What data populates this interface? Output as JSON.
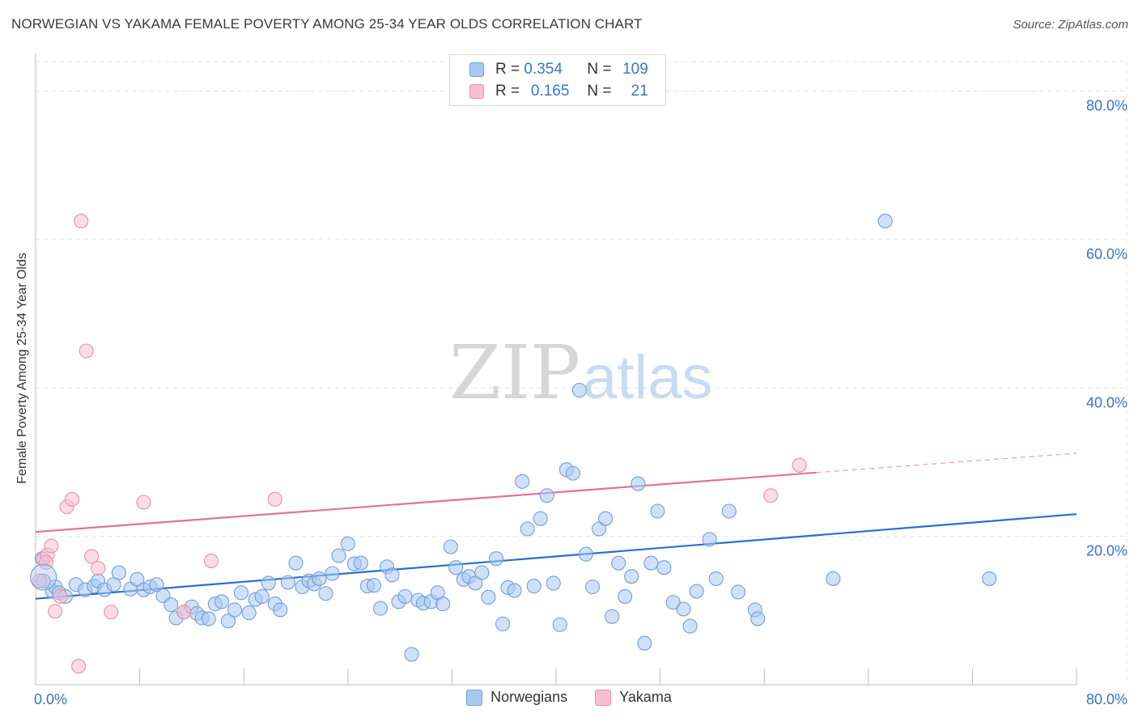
{
  "title": "NORWEGIAN VS YAKAMA FEMALE POVERTY AMONG 25-34 YEAR OLDS CORRELATION CHART",
  "source": "Source: ZipAtlas.com",
  "watermark": {
    "zip": "ZIP",
    "atlas": "atlas"
  },
  "colors": {
    "norwegians_fill": "#a9c8f0",
    "norwegians_stroke": "#6f9fdc",
    "norwegians_line": "#2a6fcc",
    "yakama_fill": "#f6bfd0",
    "yakama_stroke": "#ea8fab",
    "yakama_line": "#e2719a",
    "tick_label": "#3a74c9",
    "grid": "#e3e3e3"
  },
  "legend": {
    "rows": [
      {
        "r_label": "R =",
        "r_value": "0.354",
        "n_label": "N =",
        "n_value": "109"
      },
      {
        "r_label": "R =",
        "r_value": "0.165",
        "n_label": "N =",
        "n_value": "21"
      }
    ]
  },
  "bottom_legend": [
    "Norwegians",
    "Yakama"
  ],
  "chart_data": {
    "type": "scatter",
    "title": "NORWEGIAN VS YAKAMA FEMALE POVERTY AMONG 25-34 YEAR OLDS CORRELATION CHART",
    "xlabel": "",
    "ylabel": "Female Poverty Among 25-34 Year Olds",
    "xlim": [
      0,
      80
    ],
    "ylim": [
      0,
      84
    ],
    "x_tick_labels": [
      "0.0%",
      "80.0%"
    ],
    "y_ticks": [
      20,
      40,
      60,
      80
    ],
    "y_tick_labels": [
      "20.0%",
      "40.0%",
      "60.0%",
      "80.0%"
    ],
    "grid": true,
    "legend_position": "top-center",
    "series": [
      {
        "name": "Norwegians",
        "r": 0.354,
        "n": 109,
        "trend": {
          "x": [
            0,
            80
          ],
          "y": [
            11.6,
            23.0
          ]
        },
        "points": [
          [
            0.5,
            17.0
          ],
          [
            0.6,
            14.0
          ],
          [
            1.3,
            12.6
          ],
          [
            1.5,
            13.2
          ],
          [
            1.8,
            12.4
          ],
          [
            2.3,
            11.9
          ],
          [
            3.1,
            13.5
          ],
          [
            3.8,
            12.8
          ],
          [
            4.5,
            13.3
          ],
          [
            4.8,
            14.0
          ],
          [
            5.3,
            12.8
          ],
          [
            6.0,
            13.5
          ],
          [
            6.4,
            15.1
          ],
          [
            7.3,
            12.9
          ],
          [
            7.8,
            14.2
          ],
          [
            8.3,
            12.8
          ],
          [
            8.8,
            13.2
          ],
          [
            9.3,
            13.5
          ],
          [
            9.8,
            12.0
          ],
          [
            10.4,
            10.8
          ],
          [
            10.8,
            9.0
          ],
          [
            11.4,
            9.8
          ],
          [
            12.0,
            10.5
          ],
          [
            12.4,
            9.6
          ],
          [
            12.8,
            9.0
          ],
          [
            13.3,
            8.9
          ],
          [
            13.8,
            10.9
          ],
          [
            14.3,
            11.2
          ],
          [
            14.8,
            8.6
          ],
          [
            15.3,
            10.1
          ],
          [
            15.8,
            12.4
          ],
          [
            16.4,
            9.7
          ],
          [
            16.9,
            11.5
          ],
          [
            17.4,
            11.9
          ],
          [
            17.9,
            13.7
          ],
          [
            18.4,
            10.9
          ],
          [
            18.8,
            10.1
          ],
          [
            19.4,
            13.8
          ],
          [
            20.0,
            16.4
          ],
          [
            20.5,
            13.2
          ],
          [
            21.0,
            14.0
          ],
          [
            21.4,
            13.6
          ],
          [
            21.8,
            14.3
          ],
          [
            22.3,
            12.3
          ],
          [
            22.8,
            15.0
          ],
          [
            23.3,
            17.4
          ],
          [
            24.0,
            19.0
          ],
          [
            24.5,
            16.3
          ],
          [
            25.0,
            16.4
          ],
          [
            25.5,
            13.3
          ],
          [
            26.0,
            13.4
          ],
          [
            26.5,
            10.3
          ],
          [
            27.0,
            15.9
          ],
          [
            27.4,
            14.8
          ],
          [
            27.9,
            11.2
          ],
          [
            28.4,
            11.9
          ],
          [
            28.9,
            4.1
          ],
          [
            29.4,
            11.4
          ],
          [
            29.8,
            11.0
          ],
          [
            30.4,
            11.2
          ],
          [
            30.9,
            12.4
          ],
          [
            31.3,
            10.9
          ],
          [
            31.9,
            18.6
          ],
          [
            32.3,
            15.8
          ],
          [
            32.9,
            14.2
          ],
          [
            33.3,
            14.6
          ],
          [
            33.8,
            13.7
          ],
          [
            34.3,
            15.1
          ],
          [
            34.8,
            11.8
          ],
          [
            35.4,
            17.0
          ],
          [
            35.9,
            8.2
          ],
          [
            36.3,
            13.1
          ],
          [
            36.8,
            12.7
          ],
          [
            37.4,
            27.4
          ],
          [
            37.8,
            21.0
          ],
          [
            38.3,
            13.3
          ],
          [
            38.8,
            22.4
          ],
          [
            39.3,
            25.5
          ],
          [
            39.8,
            13.7
          ],
          [
            40.3,
            8.1
          ],
          [
            40.8,
            29.0
          ],
          [
            41.3,
            28.5
          ],
          [
            41.8,
            39.7
          ],
          [
            42.3,
            17.6
          ],
          [
            42.8,
            13.2
          ],
          [
            43.3,
            21.0
          ],
          [
            43.8,
            22.4
          ],
          [
            44.3,
            9.2
          ],
          [
            44.8,
            16.4
          ],
          [
            45.3,
            11.9
          ],
          [
            45.8,
            14.6
          ],
          [
            46.3,
            27.1
          ],
          [
            46.8,
            5.6
          ],
          [
            47.3,
            16.4
          ],
          [
            47.8,
            23.4
          ],
          [
            48.3,
            15.8
          ],
          [
            49.0,
            11.1
          ],
          [
            49.8,
            10.2
          ],
          [
            50.3,
            7.9
          ],
          [
            50.8,
            12.6
          ],
          [
            51.8,
            19.6
          ],
          [
            52.3,
            14.3
          ],
          [
            53.3,
            23.4
          ],
          [
            54.0,
            12.5
          ],
          [
            55.3,
            10.1
          ],
          [
            55.5,
            8.9
          ],
          [
            61.3,
            14.3
          ],
          [
            65.3,
            62.5
          ],
          [
            73.3,
            14.3
          ]
        ]
      },
      {
        "name": "Yakama",
        "r": 0.165,
        "n": 21,
        "trend": {
          "x": [
            0,
            60
          ],
          "y": [
            20.6,
            28.6
          ],
          "extended": {
            "x": [
              60,
              80
            ],
            "y": [
              28.6,
              31.2
            ]
          }
        },
        "points": [
          [
            0.3,
            14.0
          ],
          [
            0.6,
            16.9
          ],
          [
            0.9,
            17.5
          ],
          [
            1.2,
            18.7
          ],
          [
            1.5,
            9.9
          ],
          [
            1.9,
            11.9
          ],
          [
            2.4,
            24.0
          ],
          [
            2.8,
            25.0
          ],
          [
            3.3,
            2.5
          ],
          [
            3.5,
            62.5
          ],
          [
            3.9,
            45.0
          ],
          [
            4.3,
            17.3
          ],
          [
            4.8,
            15.7
          ],
          [
            5.8,
            9.8
          ],
          [
            8.3,
            24.6
          ],
          [
            11.4,
            9.8
          ],
          [
            13.5,
            16.7
          ],
          [
            18.4,
            25.0
          ],
          [
            56.5,
            25.5
          ],
          [
            58.7,
            29.6
          ],
          [
            0.8,
            16.5
          ]
        ]
      }
    ]
  }
}
